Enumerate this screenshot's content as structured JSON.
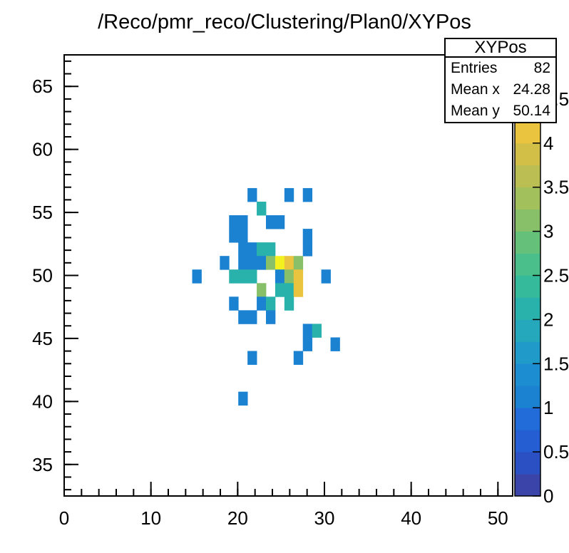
{
  "background_color": "#ffffff",
  "title": "/Reco/pmr_reco/Clustering/Plan0/XYPos",
  "stats": {
    "title": "XYPos",
    "rows": [
      {
        "label": "Entries",
        "value": "82"
      },
      {
        "label": "Mean x",
        "value": "24.28"
      },
      {
        "label": "Mean y",
        "value": "50.14"
      }
    ]
  },
  "chart_data": {
    "type": "heatmap",
    "title": "/Reco/pmr_reco/Clustering/Plan0/XYPos",
    "entries": 82,
    "mean_x": 24.28,
    "mean_y": 50.14,
    "grid": false,
    "legend_position": "stats-box top-right",
    "x_axis": {
      "range": [
        0,
        51.7
      ],
      "major_ticks": [
        0,
        10,
        20,
        30,
        40,
        50
      ],
      "major_tick_labels": [
        "0",
        "10",
        "20",
        "30",
        "40",
        "50"
      ],
      "minor_tick_step": 2
    },
    "y_axis": {
      "range": [
        32.5,
        67.5
      ],
      "major_ticks": [
        35,
        40,
        45,
        50,
        55,
        60,
        65
      ],
      "major_tick_labels": [
        "35",
        "40",
        "45",
        "50",
        "55",
        "60",
        "65"
      ],
      "minor_tick_step": 1
    },
    "palette": {
      "range": [
        0,
        5
      ],
      "tick_step": 0.5,
      "tick_labels": [
        "0",
        "0.5",
        "1",
        "1.5",
        "2",
        "2.5",
        "3",
        "3.5",
        "4",
        "4.5",
        "5"
      ],
      "contour_band_size": 0.25,
      "band_colors_bottom_to_top": [
        "#3b44a8",
        "#2b50c3",
        "#255ed2",
        "#216cd8",
        "#1b82d1",
        "#1d8dd1",
        "#209ac9",
        "#25a7bc",
        "#28b2ab",
        "#35ba9b",
        "#4abf8b",
        "#65c07a",
        "#87c068",
        "#a2c05c",
        "#bbbe52",
        "#d2bf48",
        "#eac43e",
        "#efc83b",
        "#f2cc38",
        "#f4f21e"
      ]
    },
    "bins": {
      "description": "cells are [col,row,value]; x_left = x_left_origin + col*x_bin_width; y_top = y_top_origin - row*y_bin_height",
      "x_left_origin": 12.63,
      "x_bin_width": 1.063,
      "y_top_origin": 56.93,
      "y_bin_height": 1.077,
      "cells_col_row_value": [
        [
          8,
          0,
          1
        ],
        [
          12,
          0,
          1
        ],
        [
          14,
          0,
          1
        ],
        [
          9,
          1,
          2
        ],
        [
          6,
          2,
          1
        ],
        [
          7,
          2,
          1
        ],
        [
          10,
          2,
          1
        ],
        [
          11,
          2,
          1
        ],
        [
          6,
          3,
          1
        ],
        [
          7,
          3,
          1
        ],
        [
          14,
          3,
          1
        ],
        [
          7,
          4,
          1
        ],
        [
          8,
          4,
          1
        ],
        [
          9,
          4,
          2
        ],
        [
          10,
          4,
          2
        ],
        [
          14,
          4,
          1
        ],
        [
          5,
          5,
          1
        ],
        [
          7,
          5,
          1
        ],
        [
          8,
          5,
          1
        ],
        [
          9,
          5,
          1
        ],
        [
          10,
          5,
          3
        ],
        [
          11,
          5,
          5
        ],
        [
          12,
          5,
          4
        ],
        [
          13,
          5,
          3
        ],
        [
          2,
          6,
          1
        ],
        [
          6,
          6,
          2
        ],
        [
          7,
          6,
          2
        ],
        [
          8,
          6,
          2
        ],
        [
          11,
          6,
          1
        ],
        [
          12,
          6,
          3
        ],
        [
          13,
          6,
          4
        ],
        [
          16,
          6,
          1
        ],
        [
          9,
          7,
          3
        ],
        [
          11,
          7,
          2
        ],
        [
          12,
          7,
          2
        ],
        [
          13,
          7,
          4
        ],
        [
          6,
          8,
          1
        ],
        [
          9,
          8,
          1
        ],
        [
          10,
          8,
          2
        ],
        [
          12,
          8,
          2
        ],
        [
          7,
          9,
          1
        ],
        [
          8,
          9,
          1
        ],
        [
          10,
          9,
          1
        ],
        [
          14,
          10,
          1
        ],
        [
          15,
          10,
          2
        ],
        [
          14,
          11,
          1
        ],
        [
          17,
          11,
          1
        ],
        [
          8,
          12,
          1
        ],
        [
          13,
          12,
          1
        ],
        [
          7,
          15,
          1
        ]
      ]
    }
  }
}
